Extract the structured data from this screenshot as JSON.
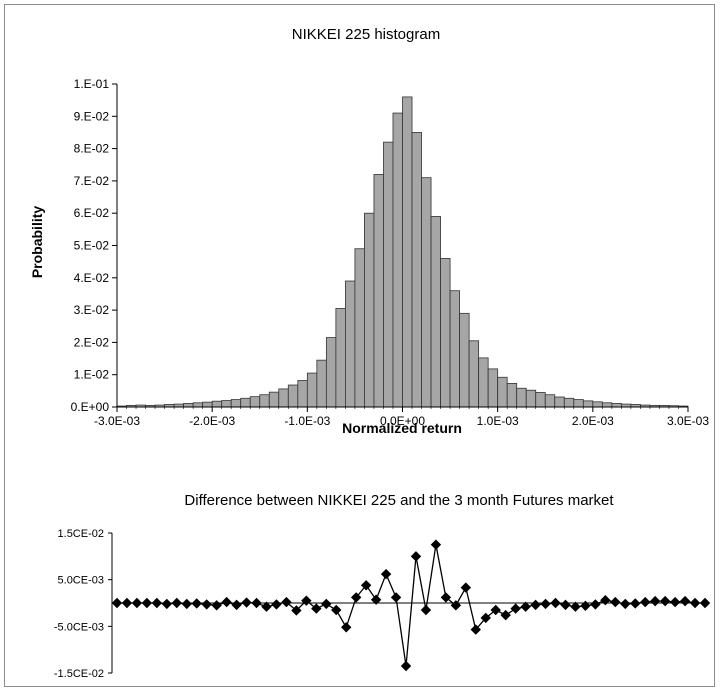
{
  "chart_data": [
    {
      "type": "bar",
      "title": "NIKKEI 225 histogram",
      "xlabel": "Normalized return",
      "ylabel": "Probability",
      "xlim": [
        -0.003,
        0.003
      ],
      "ylim": [
        0,
        0.1
      ],
      "grid": false,
      "legend": "none",
      "bar_color": "#a6a6a6",
      "bar_edge_color": "#333333",
      "x_tick_values": [
        -0.003,
        -0.002,
        -0.001,
        0,
        0.001,
        0.002,
        0.003
      ],
      "x_tick_labels": [
        "-3.0E-03",
        "-2.0E-03",
        "-1.0E-03",
        "0.0E+00",
        "1.0E-03",
        "2.0E-03",
        "3.0E-03"
      ],
      "y_tick_values": [
        0,
        0.01,
        0.02,
        0.03,
        0.04,
        0.05,
        0.06,
        0.07,
        0.08,
        0.09,
        0.1
      ],
      "y_tick_labels": [
        "0.E+00",
        "1.E-02",
        "2.E-02",
        "3.E-02",
        "4.E-02",
        "5.E-02",
        "6.E-02",
        "7.E-02",
        "8.E-02",
        "9.E-02",
        "1.E-01"
      ],
      "bin_width": 0.0001,
      "x": [
        -0.00295,
        -0.00285,
        -0.00275,
        -0.00265,
        -0.00255,
        -0.00245,
        -0.00235,
        -0.00225,
        -0.00215,
        -0.00205,
        -0.00195,
        -0.00185,
        -0.00175,
        -0.00165,
        -0.00155,
        -0.00145,
        -0.00135,
        -0.00125,
        -0.00115,
        -0.00105,
        -0.00095,
        -0.00085,
        -0.00075,
        -0.00065,
        -0.00055,
        -0.00045,
        -0.00035,
        -0.00025,
        -0.00015,
        -5e-05,
        5e-05,
        0.00015,
        0.00025,
        0.00035,
        0.00045,
        0.00055,
        0.00065,
        0.00075,
        0.00085,
        0.00095,
        0.00105,
        0.00115,
        0.00125,
        0.00135,
        0.00145,
        0.00155,
        0.00165,
        0.00175,
        0.00185,
        0.00195,
        0.00205,
        0.00215,
        0.00225,
        0.00235,
        0.00245,
        0.00255,
        0.00265,
        0.00275,
        0.00285,
        0.00295
      ],
      "values": [
        0.0003,
        0.0005,
        0.0006,
        0.0005,
        0.0006,
        0.0008,
        0.0009,
        0.0011,
        0.0013,
        0.0015,
        0.0018,
        0.002,
        0.0023,
        0.0027,
        0.0032,
        0.0038,
        0.0046,
        0.0056,
        0.0068,
        0.0082,
        0.0105,
        0.0145,
        0.0215,
        0.0305,
        0.039,
        0.049,
        0.06,
        0.072,
        0.082,
        0.091,
        0.096,
        0.085,
        0.071,
        0.059,
        0.046,
        0.036,
        0.029,
        0.0205,
        0.0152,
        0.0118,
        0.0092,
        0.0073,
        0.0058,
        0.0052,
        0.0045,
        0.0038,
        0.0031,
        0.0027,
        0.0023,
        0.0019,
        0.0016,
        0.0013,
        0.0011,
        0.0009,
        0.0008,
        0.0006,
        0.0005,
        0.0005,
        0.0004,
        0.0003
      ]
    },
    {
      "type": "line",
      "title": "Difference between NIKKEI 225 and the 3 month Futures market",
      "xlabel": "",
      "ylabel": "",
      "xlim": [
        -0.003,
        0.003
      ],
      "ylim": [
        -0.015,
        0.015
      ],
      "grid": false,
      "legend": "none",
      "marker": "diamond",
      "line_color": "#000000",
      "y_tick_values": [
        0.015,
        0.005,
        -0.005,
        -0.015
      ],
      "y_tick_labels": [
        "1.5CE-02",
        "5.0CE-03",
        "-5.0CE-03",
        "-1.5CE-02"
      ],
      "x": [
        -0.00295,
        -0.00285,
        -0.00275,
        -0.00265,
        -0.00255,
        -0.00245,
        -0.00235,
        -0.00225,
        -0.00215,
        -0.00205,
        -0.00195,
        -0.00185,
        -0.00175,
        -0.00165,
        -0.00155,
        -0.00145,
        -0.00135,
        -0.00125,
        -0.00115,
        -0.00105,
        -0.00095,
        -0.00085,
        -0.00075,
        -0.00065,
        -0.00055,
        -0.00045,
        -0.00035,
        -0.00025,
        -0.00015,
        -5e-05,
        5e-05,
        0.00015,
        0.00025,
        0.00035,
        0.00045,
        0.00055,
        0.00065,
        0.00075,
        0.00085,
        0.00095,
        0.00105,
        0.00115,
        0.00125,
        0.00135,
        0.00145,
        0.00155,
        0.00165,
        0.00175,
        0.00185,
        0.00195,
        0.00205,
        0.00215,
        0.00225,
        0.00235,
        0.00245,
        0.00255,
        0.00265,
        0.00275,
        0.00285,
        0.00295
      ],
      "values": [
        0.0,
        0.0,
        0.0,
        0.0,
        0.0,
        -0.0002,
        0.0,
        -0.0002,
        -0.0001,
        -0.0003,
        -0.0005,
        0.0002,
        -0.0004,
        0.0001,
        0.0,
        -0.0008,
        -0.0003,
        0.0002,
        -0.0016,
        0.0005,
        -0.0012,
        -0.0002,
        -0.0015,
        -0.0052,
        0.0012,
        0.0038,
        0.0007,
        0.0062,
        0.0012,
        -0.0135,
        0.01,
        -0.0015,
        0.0125,
        0.0012,
        -0.0005,
        0.0033,
        -0.0057,
        -0.0032,
        -0.0015,
        -0.0026,
        -0.0012,
        -0.0008,
        -0.0004,
        -0.0002,
        0.0,
        -0.0004,
        -0.0008,
        -0.0006,
        -0.0003,
        0.0006,
        0.0002,
        -0.0002,
        -0.0001,
        0.0002,
        0.0004,
        0.0004,
        0.0002,
        0.0004,
        0.0,
        0.0
      ]
    }
  ]
}
